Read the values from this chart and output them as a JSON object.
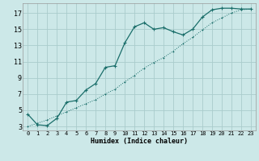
{
  "xlabel": "Humidex (Indice chaleur)",
  "bg_color": "#cce8e8",
  "grid_color": "#aacccc",
  "line_color": "#1a6e6a",
  "xlim": [
    -0.5,
    23.5
  ],
  "ylim": [
    2.5,
    18.2
  ],
  "xticks": [
    0,
    1,
    2,
    3,
    4,
    5,
    6,
    7,
    8,
    9,
    10,
    11,
    12,
    13,
    14,
    15,
    16,
    17,
    18,
    19,
    20,
    21,
    22,
    23
  ],
  "yticks": [
    3,
    5,
    7,
    9,
    11,
    13,
    15,
    17
  ],
  "curve1_x": [
    0,
    1,
    2,
    3,
    4,
    5,
    6,
    7,
    8,
    9,
    10,
    11,
    12,
    13,
    14,
    15,
    16,
    17,
    18,
    19,
    20,
    21,
    22,
    23
  ],
  "curve1_y": [
    4.5,
    3.2,
    3.1,
    4.0,
    6.0,
    6.2,
    7.5,
    8.3,
    10.3,
    10.5,
    13.3,
    15.3,
    15.8,
    15.0,
    15.2,
    14.7,
    14.3,
    15.0,
    16.5,
    17.4,
    17.6,
    17.6,
    17.5,
    17.5
  ],
  "curve2_x": [
    0,
    1,
    2,
    3,
    4,
    5,
    6,
    7,
    8,
    9,
    10,
    11,
    12,
    13,
    14,
    15,
    16,
    17,
    18,
    19,
    20,
    21,
    22,
    23
  ],
  "curve2_y": [
    3.0,
    3.4,
    3.8,
    4.3,
    4.8,
    5.3,
    5.8,
    6.3,
    7.0,
    7.6,
    8.5,
    9.3,
    10.2,
    10.9,
    11.5,
    12.3,
    13.2,
    14.0,
    14.9,
    15.8,
    16.4,
    17.0,
    17.4,
    17.5
  ]
}
